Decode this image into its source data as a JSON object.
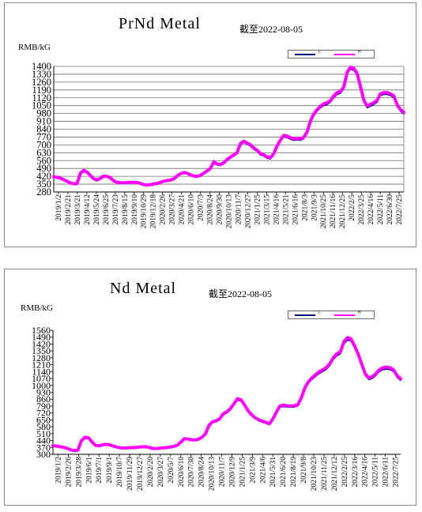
{
  "chart_data": [
    {
      "type": "line",
      "title": "PrNd Metal",
      "subtitle": "截至2022-08-05",
      "ylabel": "RMB/kG",
      "ylim": [
        280,
        1400
      ],
      "y_ticks": [
        "280",
        "350",
        "420",
        "490",
        "560",
        "630",
        "700",
        "770",
        "840",
        "910",
        "980",
        "1050",
        "1120",
        "1190",
        "1260",
        "1330",
        "1400"
      ],
      "x_ticks": [
        "2019/1/2",
        "2019/2/21",
        "2019/3/21",
        "2019/4/12",
        "2019/5/24",
        "2019/6/25",
        "2019/7/23",
        "2019/8/15",
        "2019/9/10",
        "2019/10/29",
        "2019/12/18",
        "2020/2/26",
        "2020/3/27",
        "2020/4/21",
        "2020/6/10",
        "2020/7/3",
        "2020/8/24",
        "2020/9/30",
        "2020/10/13",
        "2020/11/7",
        "2020/12/27",
        "2021/1/25",
        "2021/3/15",
        "2021/4/16",
        "2021/5/21",
        "2021/6/16",
        "2021/8/3",
        "2021/9/3",
        "2021/10/25",
        "2021/11/16",
        "2021/12/25",
        "2022/2/5",
        "2022/3/25",
        "2022/4/16",
        "2022/5/11",
        "2022/6/30",
        "2022/7/25"
      ],
      "grid": true,
      "legend": {
        "position": "top-right",
        "entries": [
          "L",
          "H"
        ]
      },
      "series": [
        {
          "name": "L",
          "color": "#000080",
          "values": [
            410,
            405,
            398,
            385,
            370,
            355,
            348,
            350,
            440,
            465,
            450,
            420,
            390,
            380,
            395,
            415,
            412,
            400,
            372,
            360,
            358,
            355,
            358,
            360,
            360,
            358,
            350,
            340,
            335,
            340,
            345,
            350,
            360,
            370,
            375,
            380,
            390,
            415,
            435,
            445,
            440,
            425,
            415,
            412,
            420,
            440,
            460,
            480,
            540,
            520,
            515,
            530,
            560,
            580,
            600,
            620,
            700,
            720,
            705,
            690,
            660,
            640,
            610,
            600,
            580,
            575,
            610,
            680,
            730,
            770,
            765,
            750,
            740,
            745,
            740,
            755,
            800,
            900,
            960,
            1000,
            1030,
            1050,
            1060,
            1080,
            1120,
            1150,
            1160,
            1200,
            1330,
            1375,
            1365,
            1320,
            1200,
            1080,
            1030,
            1045,
            1060,
            1080,
            1140,
            1150,
            1150,
            1140,
            1120,
            1040,
            1000,
            975
          ]
        },
        {
          "name": "H",
          "color": "#ff00ff",
          "values": [
            415,
            410,
            403,
            390,
            375,
            360,
            353,
            355,
            448,
            472,
            457,
            427,
            397,
            387,
            402,
            422,
            419,
            407,
            379,
            366,
            364,
            361,
            364,
            366,
            366,
            364,
            356,
            346,
            341,
            346,
            351,
            356,
            366,
            377,
            382,
            387,
            397,
            423,
            443,
            453,
            448,
            433,
            423,
            420,
            428,
            448,
            468,
            489,
            550,
            530,
            525,
            540,
            571,
            591,
            611,
            631,
            712,
            732,
            717,
            702,
            672,
            652,
            622,
            612,
            592,
            587,
            622,
            693,
            743,
            784,
            779,
            764,
            754,
            759,
            754,
            769,
            815,
            915,
            975,
            1015,
            1046,
            1066,
            1076,
            1096,
            1137,
            1167,
            1177,
            1217,
            1348,
            1393,
            1383,
            1338,
            1218,
            1097,
            1047,
            1062,
            1077,
            1097,
            1157,
            1167,
            1167,
            1157,
            1137,
            1057,
            1017,
            990
          ]
        }
      ]
    },
    {
      "type": "line",
      "title": "Nd Metal",
      "subtitle": "截至2022-08-05",
      "ylabel": "RMB/kG",
      "ylim": [
        300,
        1560
      ],
      "y_ticks": [
        "300",
        "370",
        "440",
        "510",
        "580",
        "650",
        "720",
        "790",
        "860",
        "930",
        "1000",
        "1070",
        "1140",
        "1210",
        "1280",
        "1350",
        "1420",
        "1490",
        "1560"
      ],
      "x_ticks": [
        "2019/1/2",
        "2019/2/26",
        "2019/3/28",
        "2019/6/1",
        "2019/7/1",
        "2019/9/1",
        "2019/10/7",
        "2019/11/29",
        "2019/12/27",
        "2020/2/20",
        "2020/3/27",
        "2020/5/7",
        "2020/6/10",
        "2020/7/30",
        "2020/8/24",
        "2020/10/13",
        "2020/11/7",
        "2020/12/9",
        "2021/1/25",
        "2021/3/9",
        "2021/4/6",
        "2021/5/31",
        "2021/6/20",
        "2021/8/19",
        "2021/9/8",
        "2021/10/23",
        "2021/11/25",
        "2021/12/12",
        "2022/2/25",
        "2022/3/16",
        "2022/4/16",
        "2022/5/11",
        "2022/6/11",
        "2022/7/25"
      ],
      "grid": false,
      "legend": {
        "position": "top-right",
        "entries": [
          "L",
          "H"
        ]
      },
      "series": [
        {
          "name": "L",
          "color": "#000080",
          "values": [
            380,
            378,
            372,
            365,
            355,
            340,
            332,
            335,
            430,
            465,
            460,
            420,
            385,
            380,
            390,
            395,
            390,
            378,
            368,
            360,
            358,
            360,
            362,
            362,
            366,
            370,
            372,
            365,
            355,
            352,
            355,
            360,
            362,
            368,
            375,
            385,
            415,
            450,
            448,
            440,
            438,
            445,
            465,
            500,
            585,
            620,
            630,
            650,
            700,
            720,
            750,
            800,
            850,
            840,
            790,
            730,
            690,
            660,
            640,
            625,
            615,
            600,
            650,
            720,
            780,
            785,
            780,
            778,
            780,
            790,
            860,
            960,
            1020,
            1060,
            1090,
            1120,
            1140,
            1160,
            1200,
            1260,
            1300,
            1320,
            1420,
            1460,
            1450,
            1380,
            1300,
            1200,
            1100,
            1060,
            1070,
            1100,
            1140,
            1160,
            1165,
            1160,
            1140,
            1080,
            1050
          ]
        },
        {
          "name": "H",
          "color": "#ff00ff",
          "values": [
            386,
            384,
            378,
            371,
            361,
            346,
            338,
            341,
            437,
            473,
            468,
            427,
            391,
            386,
            396,
            401,
            396,
            384,
            374,
            366,
            364,
            366,
            368,
            368,
            372,
            376,
            378,
            371,
            361,
            358,
            361,
            366,
            368,
            374,
            381,
            391,
            422,
            458,
            456,
            448,
            446,
            453,
            473,
            509,
            595,
            631,
            641,
            661,
            712,
            732,
            763,
            814,
            864,
            854,
            803,
            742,
            702,
            671,
            651,
            636,
            626,
            610,
            661,
            732,
            793,
            798,
            793,
            791,
            793,
            803,
            875,
            976,
            1037,
            1078,
            1108,
            1139,
            1159,
            1180,
            1220,
            1281,
            1322,
            1342,
            1444,
            1485,
            1475,
            1403,
            1322,
            1220,
            1119,
            1078,
            1088,
            1119,
            1159,
            1180,
            1185,
            1180,
            1159,
            1098,
            1068
          ]
        }
      ]
    }
  ]
}
